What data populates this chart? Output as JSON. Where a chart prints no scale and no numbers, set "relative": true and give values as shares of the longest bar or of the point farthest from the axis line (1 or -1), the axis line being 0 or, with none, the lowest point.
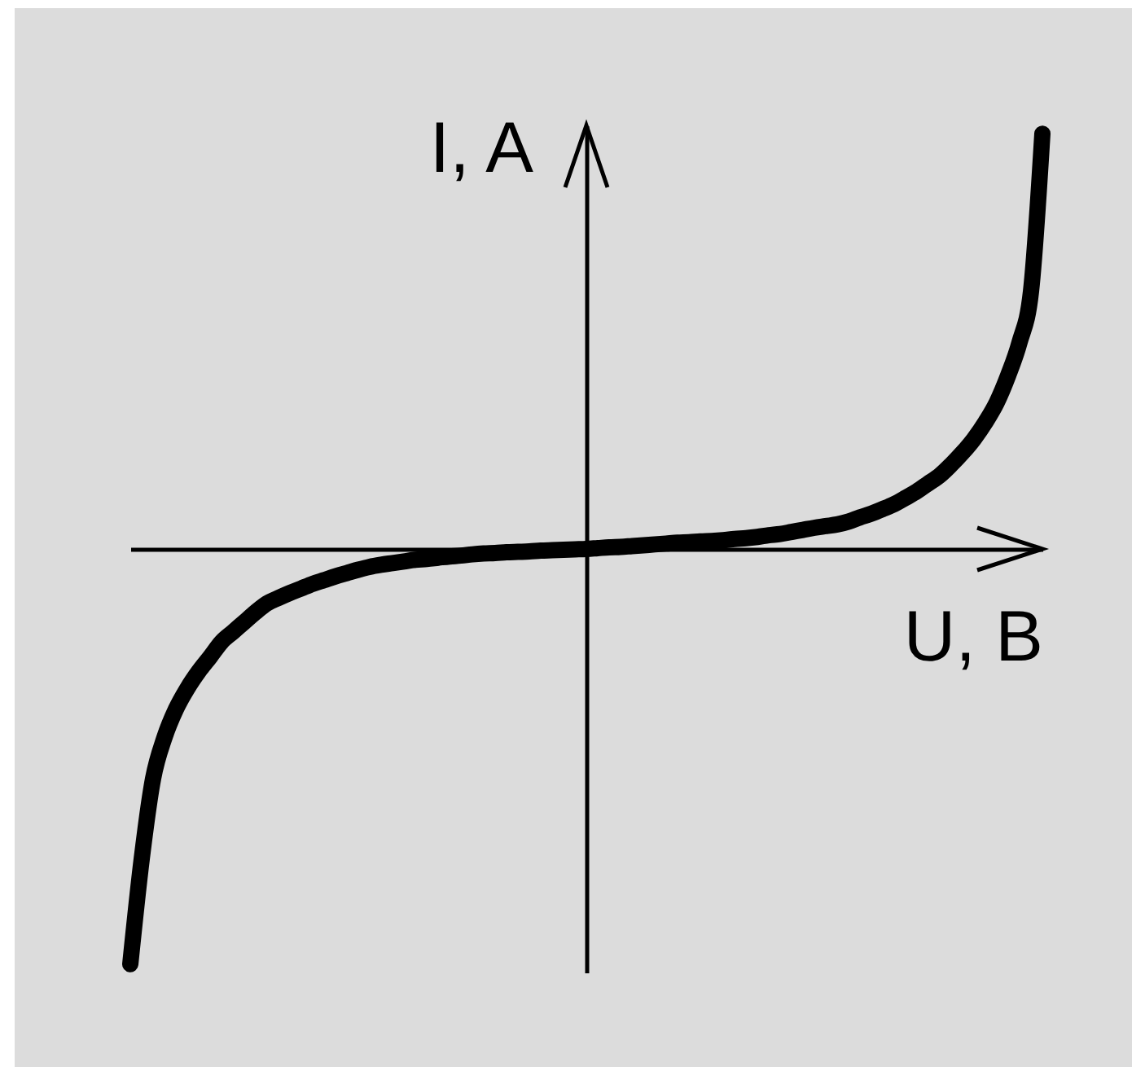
{
  "chart_data": {
    "type": "line",
    "xlabel": "U, B",
    "ylabel": "I, A",
    "relative": true,
    "color": "#000000",
    "categories": [
      null,
      null,
      null,
      null,
      null,
      null,
      null,
      null,
      null,
      null,
      null,
      null,
      null,
      null,
      null,
      null,
      null,
      null,
      null,
      null,
      null,
      null,
      null,
      null,
      null,
      null,
      null,
      null,
      null,
      null,
      null,
      null,
      null,
      null,
      null,
      null,
      null,
      null,
      null,
      null,
      null,
      null,
      null,
      null,
      null,
      null,
      null,
      null,
      null,
      null,
      null,
      null,
      null,
      null,
      null,
      null,
      null,
      null,
      null,
      null,
      null,
      null,
      null,
      null,
      null,
      null,
      null,
      null,
      null,
      null,
      null,
      null,
      null,
      null,
      null,
      null,
      null,
      null,
      null,
      null,
      null
    ],
    "values": [
      -1.0,
      -0.747,
      -0.553,
      -0.454,
      -0.386,
      -0.336,
      -0.295,
      -0.26,
      -0.224,
      -0.2,
      -0.176,
      -0.152,
      -0.131,
      -0.118,
      -0.106,
      -0.095,
      -0.084,
      -0.075,
      -0.066,
      -0.058,
      -0.05,
      -0.043,
      -0.038,
      -0.034,
      -0.03,
      -0.026,
      -0.024,
      -0.021,
      -0.018,
      -0.016,
      -0.013,
      -0.011,
      -0.01,
      -0.008,
      -0.007,
      -0.006,
      -0.004,
      -0.003,
      -0.002,
      -0.001,
      0,
      0.002,
      0.004,
      0.005,
      0.007,
      0.009,
      0.011,
      0.013,
      0.015,
      0.016,
      0.018,
      0.019,
      0.021,
      0.024,
      0.026,
      0.029,
      0.033,
      0.036,
      0.041,
      0.046,
      0.051,
      0.055,
      0.059,
      0.066,
      0.076,
      0.085,
      0.096,
      0.108,
      0.123,
      0.139,
      0.158,
      0.177,
      0.203,
      0.232,
      0.265,
      0.305,
      0.353,
      0.418,
      0.498,
      0.62,
      1.0
    ]
  }
}
